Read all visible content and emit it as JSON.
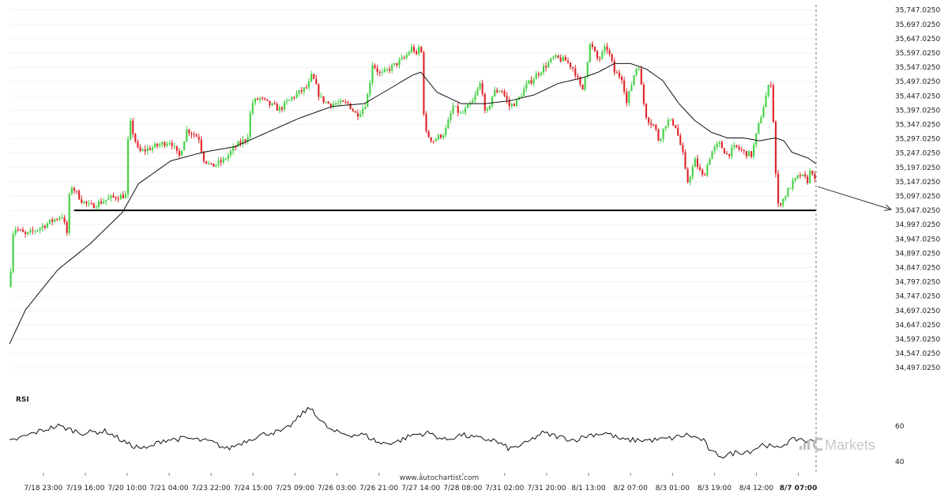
{
  "chart_data": {
    "type": "candlestick",
    "instrument_note": "",
    "y_axis": {
      "ylim": [
        34470,
        35760
      ],
      "tick_values": [
        34497.025,
        34547.025,
        34597.025,
        34647.025,
        34697.025,
        34747.025,
        34797.025,
        34847.025,
        34897.025,
        34947.025,
        34997.025,
        35047.025,
        35097.025,
        35147.025,
        35197.025,
        35247.025,
        35297.025,
        35347.025,
        35397.025,
        35447.025,
        35497.025,
        35547.025,
        35597.025,
        35647.025,
        35697.025,
        35747.025
      ],
      "tick_labels": [
        "34,497.0250",
        "34,547.0250",
        "34,597.0250",
        "34,647.0250",
        "34,697.0250",
        "34,747.0250",
        "34,797.0250",
        "34,847.0250",
        "34,897.0250",
        "34,947.0250",
        "34,997.0250",
        "35,047.0250",
        "35,097.0250",
        "35,147.0250",
        "35,197.0250",
        "35,247.0250",
        "35,297.0250",
        "35,347.0250",
        "35,397.0250",
        "35,447.0250",
        "35,497.0250",
        "35,547.0250",
        "35,597.0250",
        "35,647.0250",
        "35,697.0250",
        "35,747.0250"
      ]
    },
    "x_axis": {
      "tick_labels": [
        "7/18 23:00",
        "7/19 16:00",
        "7/20 10:00",
        "7/21 04:00",
        "7/23 22:00",
        "7/24 15:00",
        "7/25 09:00",
        "7/26 03:00",
        "7/26 21:00",
        "7/27 14:00",
        "7/28 08:00",
        "7/31 02:00",
        "7/31 20:00",
        "8/1 13:00",
        "8/2 07:00",
        "8/3 01:00",
        "8/3 19:00",
        "8/4 12:00",
        "8/7 07:00"
      ],
      "tick_fraction": [
        0.042,
        0.094,
        0.146,
        0.198,
        0.25,
        0.302,
        0.354,
        0.406,
        0.458,
        0.51,
        0.562,
        0.614,
        0.666,
        0.718,
        0.77,
        0.822,
        0.874,
        0.926,
        0.978
      ],
      "emphasized_label": "8/7 07:00"
    },
    "price_series_anchors": [
      [
        0.0,
        34780
      ],
      [
        0.005,
        34990
      ],
      [
        0.02,
        34960
      ],
      [
        0.04,
        34990
      ],
      [
        0.065,
        35030
      ],
      [
        0.072,
        34960
      ],
      [
        0.075,
        35140
      ],
      [
        0.09,
        35080
      ],
      [
        0.1,
        35060
      ],
      [
        0.125,
        35090
      ],
      [
        0.145,
        35100
      ],
      [
        0.147,
        35290
      ],
      [
        0.15,
        35350
      ],
      [
        0.16,
        35250
      ],
      [
        0.18,
        35270
      ],
      [
        0.2,
        35290
      ],
      [
        0.21,
        35230
      ],
      [
        0.22,
        35330
      ],
      [
        0.235,
        35300
      ],
      [
        0.24,
        35230
      ],
      [
        0.25,
        35200
      ],
      [
        0.265,
        35220
      ],
      [
        0.28,
        35270
      ],
      [
        0.295,
        35300
      ],
      [
        0.3,
        35420
      ],
      [
        0.31,
        35440
      ],
      [
        0.32,
        35420
      ],
      [
        0.335,
        35400
      ],
      [
        0.35,
        35440
      ],
      [
        0.37,
        35480
      ],
      [
        0.375,
        35520
      ],
      [
        0.385,
        35440
      ],
      [
        0.395,
        35420
      ],
      [
        0.41,
        35420
      ],
      [
        0.42,
        35420
      ],
      [
        0.43,
        35380
      ],
      [
        0.44,
        35410
      ],
      [
        0.445,
        35460
      ],
      [
        0.45,
        35560
      ],
      [
        0.46,
        35520
      ],
      [
        0.475,
        35550
      ],
      [
        0.49,
        35580
      ],
      [
        0.5,
        35620
      ],
      [
        0.505,
        35580
      ],
      [
        0.51,
        35650
      ],
      [
        0.512,
        35480
      ],
      [
        0.515,
        35320
      ],
      [
        0.525,
        35290
      ],
      [
        0.54,
        35320
      ],
      [
        0.55,
        35410
      ],
      [
        0.56,
        35380
      ],
      [
        0.575,
        35430
      ],
      [
        0.585,
        35500
      ],
      [
        0.59,
        35370
      ],
      [
        0.6,
        35460
      ],
      [
        0.61,
        35470
      ],
      [
        0.62,
        35410
      ],
      [
        0.63,
        35430
      ],
      [
        0.64,
        35480
      ],
      [
        0.66,
        35540
      ],
      [
        0.675,
        35580
      ],
      [
        0.69,
        35570
      ],
      [
        0.7,
        35540
      ],
      [
        0.71,
        35460
      ],
      [
        0.72,
        35630
      ],
      [
        0.73,
        35570
      ],
      [
        0.74,
        35620
      ],
      [
        0.745,
        35580
      ],
      [
        0.75,
        35530
      ],
      [
        0.76,
        35510
      ],
      [
        0.765,
        35420
      ],
      [
        0.775,
        35530
      ],
      [
        0.78,
        35560
      ],
      [
        0.785,
        35440
      ],
      [
        0.79,
        35370
      ],
      [
        0.8,
        35340
      ],
      [
        0.805,
        35290
      ],
      [
        0.815,
        35360
      ],
      [
        0.825,
        35350
      ],
      [
        0.835,
        35240
      ],
      [
        0.84,
        35140
      ],
      [
        0.85,
        35220
      ],
      [
        0.86,
        35160
      ],
      [
        0.87,
        35250
      ],
      [
        0.88,
        35280
      ],
      [
        0.89,
        35240
      ],
      [
        0.9,
        35270
      ],
      [
        0.91,
        35250
      ],
      [
        0.92,
        35240
      ],
      [
        0.925,
        35300
      ],
      [
        0.932,
        35380
      ],
      [
        0.94,
        35470
      ],
      [
        0.945,
        35500
      ],
      [
        0.948,
        35290
      ],
      [
        0.952,
        35060
      ],
      [
        0.96,
        35090
      ],
      [
        0.97,
        35140
      ],
      [
        0.98,
        35170
      ],
      [
        0.99,
        35150
      ],
      [
        0.994,
        35200
      ],
      [
        1.0,
        35130
      ]
    ],
    "moving_average_anchors": [
      [
        0.0,
        34580
      ],
      [
        0.02,
        34700
      ],
      [
        0.06,
        34840
      ],
      [
        0.1,
        34930
      ],
      [
        0.14,
        35040
      ],
      [
        0.16,
        35140
      ],
      [
        0.2,
        35220
      ],
      [
        0.24,
        35250
      ],
      [
        0.28,
        35270
      ],
      [
        0.32,
        35320
      ],
      [
        0.36,
        35370
      ],
      [
        0.4,
        35410
      ],
      [
        0.44,
        35420
      ],
      [
        0.47,
        35470
      ],
      [
        0.5,
        35520
      ],
      [
        0.51,
        35530
      ],
      [
        0.53,
        35460
      ],
      [
        0.56,
        35420
      ],
      [
        0.59,
        35420
      ],
      [
        0.62,
        35430
      ],
      [
        0.65,
        35450
      ],
      [
        0.68,
        35490
      ],
      [
        0.71,
        35510
      ],
      [
        0.73,
        35530
      ],
      [
        0.75,
        35560
      ],
      [
        0.77,
        35560
      ],
      [
        0.79,
        35540
      ],
      [
        0.81,
        35500
      ],
      [
        0.83,
        35420
      ],
      [
        0.85,
        35360
      ],
      [
        0.87,
        35320
      ],
      [
        0.89,
        35300
      ],
      [
        0.91,
        35300
      ],
      [
        0.93,
        35290
      ],
      [
        0.95,
        35300
      ],
      [
        0.96,
        35290
      ],
      [
        0.97,
        35250
      ],
      [
        0.99,
        35230
      ],
      [
        1.0,
        35210
      ]
    ],
    "support_level": 35047.025,
    "support_start_fraction": 0.08,
    "projection": {
      "from_price": 35130,
      "to_price": 35050
    },
    "rsi": {
      "title": "RSI",
      "ylim": [
        35,
        75
      ],
      "tick_values": [
        60,
        40
      ],
      "tick_labels": [
        "60",
        "40"
      ],
      "anchors": [
        [
          0.0,
          51
        ],
        [
          0.03,
          56
        ],
        [
          0.06,
          60
        ],
        [
          0.09,
          56
        ],
        [
          0.12,
          57
        ],
        [
          0.15,
          49
        ],
        [
          0.17,
          47
        ],
        [
          0.19,
          52
        ],
        [
          0.22,
          53
        ],
        [
          0.25,
          51
        ],
        [
          0.27,
          47
        ],
        [
          0.3,
          53
        ],
        [
          0.32,
          56
        ],
        [
          0.34,
          57
        ],
        [
          0.355,
          63
        ],
        [
          0.365,
          68
        ],
        [
          0.375,
          70
        ],
        [
          0.385,
          63
        ],
        [
          0.4,
          57
        ],
        [
          0.42,
          55
        ],
        [
          0.44,
          55
        ],
        [
          0.46,
          50
        ],
        [
          0.48,
          51
        ],
        [
          0.5,
          55
        ],
        [
          0.52,
          56
        ],
        [
          0.54,
          52
        ],
        [
          0.56,
          55
        ],
        [
          0.58,
          53
        ],
        [
          0.6,
          52
        ],
        [
          0.62,
          47
        ],
        [
          0.64,
          50
        ],
        [
          0.66,
          56
        ],
        [
          0.68,
          54
        ],
        [
          0.7,
          52
        ],
        [
          0.72,
          55
        ],
        [
          0.74,
          56
        ],
        [
          0.76,
          52
        ],
        [
          0.78,
          52
        ],
        [
          0.8,
          52
        ],
        [
          0.82,
          53
        ],
        [
          0.84,
          55
        ],
        [
          0.86,
          52
        ],
        [
          0.87,
          45
        ],
        [
          0.885,
          43
        ],
        [
          0.9,
          45
        ],
        [
          0.92,
          46
        ],
        [
          0.935,
          50
        ],
        [
          0.95,
          47
        ],
        [
          0.965,
          51
        ],
        [
          0.98,
          53
        ],
        [
          0.99,
          51
        ],
        [
          1.0,
          52
        ]
      ]
    }
  },
  "footer": {
    "source": "www.autochartist.com"
  },
  "branding": {
    "logo_text": "Markets"
  },
  "colors": {
    "bullish": "#46d146",
    "bearish": "#e0262b",
    "line": "#111111",
    "grid": "#e6e6e6",
    "divider": "#888888",
    "brand": "#c8c8c8",
    "brand_mark": "#bfbfbf"
  }
}
